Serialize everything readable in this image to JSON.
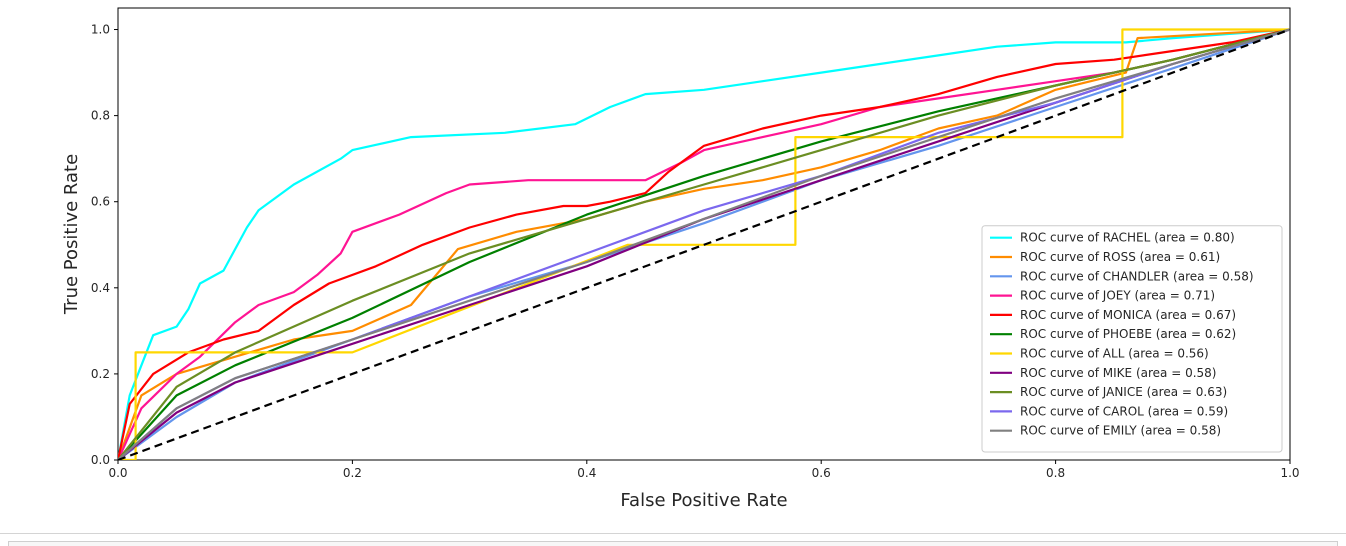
{
  "chart_data": {
    "type": "line",
    "title": "",
    "xlabel": "False Positive Rate",
    "ylabel": "True Positive Rate",
    "xlim": [
      0.0,
      1.0
    ],
    "ylim": [
      0.0,
      1.05
    ],
    "xticks": [
      "0.0",
      "0.2",
      "0.4",
      "0.6",
      "0.8",
      "1.0"
    ],
    "yticks": [
      "0.0",
      "0.2",
      "0.4",
      "0.6",
      "0.8",
      "1.0"
    ],
    "grid": false,
    "legend_position": "lower-right",
    "reference_line": {
      "x": [
        0,
        1
      ],
      "y": [
        0,
        1
      ],
      "style": "dashed",
      "color": "#000000"
    },
    "series": [
      {
        "name": "ROC curve of RACHEL (area = 0.80)",
        "color": "#00ffff",
        "x": [
          0,
          0.01,
          0.02,
          0.03,
          0.05,
          0.06,
          0.07,
          0.09,
          0.11,
          0.12,
          0.15,
          0.19,
          0.2,
          0.25,
          0.33,
          0.39,
          0.42,
          0.45,
          0.5,
          0.55,
          0.6,
          0.65,
          0.7,
          0.75,
          0.8,
          0.86,
          0.9,
          0.95,
          1.0
        ],
        "y": [
          0,
          0.15,
          0.22,
          0.29,
          0.31,
          0.35,
          0.41,
          0.44,
          0.54,
          0.58,
          0.64,
          0.7,
          0.72,
          0.75,
          0.76,
          0.78,
          0.82,
          0.85,
          0.86,
          0.88,
          0.9,
          0.92,
          0.94,
          0.96,
          0.97,
          0.97,
          0.98,
          0.99,
          1.0
        ]
      },
      {
        "name": "ROC curve of ROSS (area = 0.61)",
        "color": "#ff8c00",
        "x": [
          0,
          0.02,
          0.05,
          0.1,
          0.15,
          0.2,
          0.25,
          0.29,
          0.34,
          0.4,
          0.45,
          0.5,
          0.55,
          0.6,
          0.65,
          0.7,
          0.75,
          0.8,
          0.86,
          0.87,
          1.0
        ],
        "y": [
          0,
          0.15,
          0.2,
          0.24,
          0.28,
          0.3,
          0.36,
          0.49,
          0.53,
          0.56,
          0.6,
          0.63,
          0.65,
          0.68,
          0.72,
          0.77,
          0.8,
          0.86,
          0.9,
          0.98,
          1.0
        ]
      },
      {
        "name": "ROC curve of CHANDLER (area = 0.58)",
        "color": "#6495ed",
        "x": [
          0,
          0.05,
          0.1,
          0.2,
          0.3,
          0.4,
          0.5,
          0.6,
          0.7,
          0.8,
          0.9,
          1.0
        ],
        "y": [
          0,
          0.1,
          0.18,
          0.28,
          0.38,
          0.46,
          0.55,
          0.65,
          0.73,
          0.82,
          0.91,
          1.0
        ]
      },
      {
        "name": "ROC curve of JOEY (area = 0.71)",
        "color": "#ff1493",
        "x": [
          0,
          0.02,
          0.05,
          0.07,
          0.1,
          0.12,
          0.15,
          0.17,
          0.19,
          0.2,
          0.24,
          0.28,
          0.3,
          0.35,
          0.4,
          0.45,
          0.48,
          0.5,
          0.55,
          0.6,
          0.65,
          0.7,
          0.75,
          0.8,
          0.85,
          0.9,
          1.0
        ],
        "y": [
          0,
          0.12,
          0.2,
          0.24,
          0.32,
          0.36,
          0.39,
          0.43,
          0.48,
          0.53,
          0.57,
          0.62,
          0.64,
          0.65,
          0.65,
          0.65,
          0.69,
          0.72,
          0.75,
          0.78,
          0.82,
          0.84,
          0.86,
          0.88,
          0.9,
          0.93,
          1.0
        ]
      },
      {
        "name": "ROC curve of MONICA (area = 0.67)",
        "color": "#ff0000",
        "x": [
          0,
          0.01,
          0.03,
          0.06,
          0.09,
          0.12,
          0.15,
          0.18,
          0.22,
          0.26,
          0.3,
          0.34,
          0.38,
          0.4,
          0.42,
          0.45,
          0.47,
          0.5,
          0.55,
          0.6,
          0.65,
          0.7,
          0.75,
          0.8,
          0.85,
          0.9,
          0.95,
          1.0
        ],
        "y": [
          0,
          0.13,
          0.2,
          0.25,
          0.28,
          0.3,
          0.36,
          0.41,
          0.45,
          0.5,
          0.54,
          0.57,
          0.59,
          0.59,
          0.6,
          0.62,
          0.67,
          0.73,
          0.77,
          0.8,
          0.82,
          0.85,
          0.89,
          0.92,
          0.93,
          0.95,
          0.97,
          1.0
        ]
      },
      {
        "name": "ROC curve of PHOEBE (area = 0.62)",
        "color": "#008000",
        "x": [
          0,
          0.05,
          0.1,
          0.2,
          0.3,
          0.4,
          0.5,
          0.6,
          0.7,
          0.8,
          0.9,
          1.0
        ],
        "y": [
          0,
          0.15,
          0.22,
          0.33,
          0.46,
          0.57,
          0.66,
          0.74,
          0.81,
          0.87,
          0.93,
          1.0
        ]
      },
      {
        "name": "ROC curve of ALL (area = 0.56)",
        "color": "#ffd700",
        "x": [
          0,
          0.015,
          0.015,
          0.2,
          0.435,
          0.578,
          0.578,
          0.857,
          0.857,
          1.0
        ],
        "y": [
          0,
          0.0,
          0.25,
          0.25,
          0.5,
          0.5,
          0.75,
          0.75,
          1.0,
          1.0
        ]
      },
      {
        "name": "ROC curve of MIKE (area = 0.58)",
        "color": "#800080",
        "x": [
          0,
          0.05,
          0.1,
          0.2,
          0.3,
          0.4,
          0.5,
          0.6,
          0.7,
          0.8,
          0.9,
          1.0
        ],
        "y": [
          0,
          0.11,
          0.18,
          0.27,
          0.36,
          0.45,
          0.56,
          0.65,
          0.74,
          0.83,
          0.92,
          1.0
        ]
      },
      {
        "name": "ROC curve of JANICE (area = 0.63)",
        "color": "#6b8e23",
        "x": [
          0,
          0.05,
          0.1,
          0.2,
          0.3,
          0.4,
          0.5,
          0.6,
          0.7,
          0.8,
          0.9,
          1.0
        ],
        "y": [
          0,
          0.17,
          0.25,
          0.37,
          0.48,
          0.56,
          0.64,
          0.72,
          0.8,
          0.87,
          0.93,
          1.0
        ]
      },
      {
        "name": "ROC curve of CAROL (area = 0.59)",
        "color": "#7b68ee",
        "x": [
          0,
          0.05,
          0.1,
          0.2,
          0.3,
          0.4,
          0.5,
          0.6,
          0.7,
          0.8,
          0.9,
          1.0
        ],
        "y": [
          0,
          0.12,
          0.19,
          0.28,
          0.38,
          0.48,
          0.58,
          0.66,
          0.76,
          0.83,
          0.92,
          1.0
        ]
      },
      {
        "name": "ROC curve of EMILY (area = 0.58)",
        "color": "#808080",
        "x": [
          0,
          0.05,
          0.1,
          0.2,
          0.3,
          0.4,
          0.5,
          0.6,
          0.7,
          0.8,
          0.9,
          1.0
        ],
        "y": [
          0,
          0.12,
          0.19,
          0.28,
          0.37,
          0.46,
          0.56,
          0.66,
          0.75,
          0.84,
          0.92,
          1.0
        ]
      }
    ]
  }
}
